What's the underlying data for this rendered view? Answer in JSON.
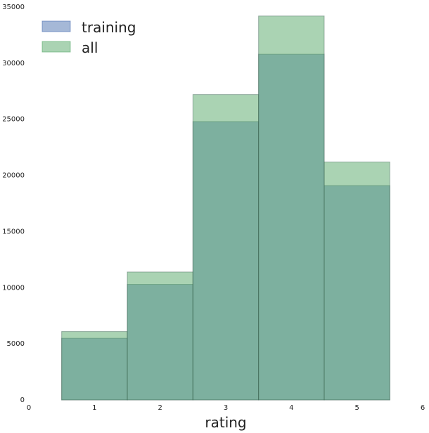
{
  "chart_data": {
    "type": "bar",
    "xlabel": "rating",
    "ylabel": "",
    "xlim": [
      0,
      6
    ],
    "ylim": [
      0,
      35000
    ],
    "x_ticks": [
      0,
      1,
      2,
      3,
      4,
      5,
      6
    ],
    "y_ticks": [
      0,
      5000,
      10000,
      15000,
      20000,
      25000,
      30000,
      35000
    ],
    "grid": false,
    "legend_position": "top-left",
    "bin_width": 1,
    "categories": [
      1,
      2,
      3,
      4,
      5
    ],
    "series": [
      {
        "name": "training",
        "values": [
          5500,
          10300,
          24800,
          30800,
          19100
        ],
        "color": "#4c72b0"
      },
      {
        "name": "all",
        "values": [
          6100,
          11400,
          27200,
          34200,
          21200
        ],
        "color": "#55a868"
      }
    ]
  }
}
